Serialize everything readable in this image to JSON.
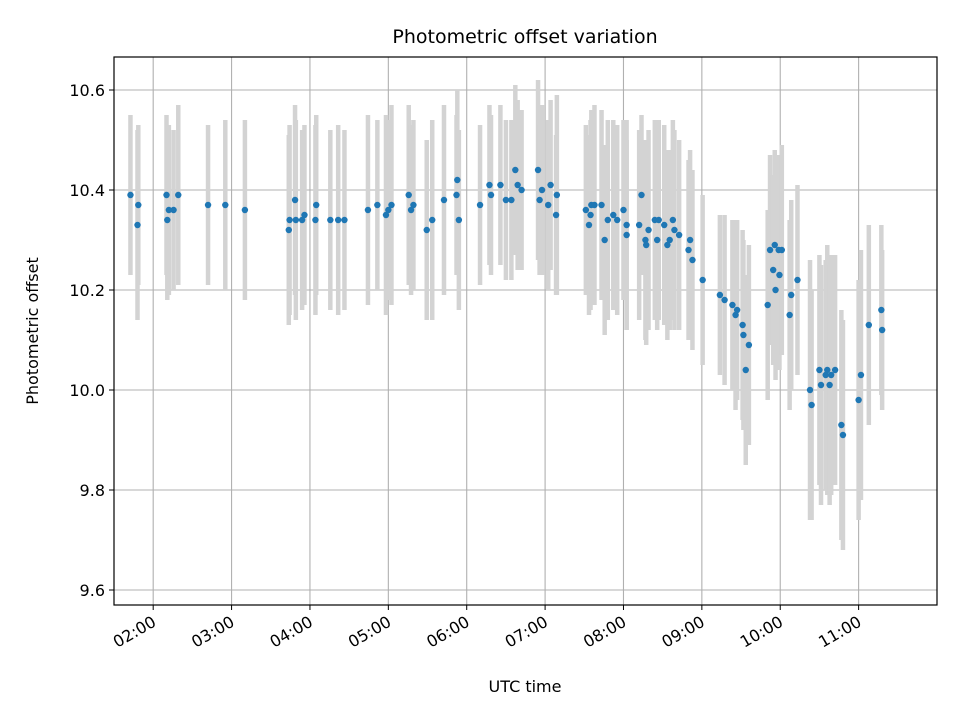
{
  "chart_data": {
    "type": "scatter",
    "title": "Photometric offset variation",
    "xlabel": "UTC time",
    "ylabel": "Photometric offset",
    "grid": true,
    "x_unit": "hours (UTC)",
    "xlim": [
      1.5,
      12.0
    ],
    "ylim": [
      9.57,
      10.666
    ],
    "xticks": [
      {
        "value": 2,
        "label": "02:00"
      },
      {
        "value": 3,
        "label": "03:00"
      },
      {
        "value": 4,
        "label": "04:00"
      },
      {
        "value": 5,
        "label": "05:00"
      },
      {
        "value": 6,
        "label": "06:00"
      },
      {
        "value": 7,
        "label": "07:00"
      },
      {
        "value": 8,
        "label": "08:00"
      },
      {
        "value": 9,
        "label": "09:00"
      },
      {
        "value": 10,
        "label": "10:00"
      },
      {
        "value": 11,
        "label": "11:00"
      }
    ],
    "yticks": [
      {
        "value": 9.6,
        "label": "9.6"
      },
      {
        "value": 9.8,
        "label": "9.8"
      },
      {
        "value": 10.0,
        "label": "10.0"
      },
      {
        "value": 10.2,
        "label": "10.2"
      },
      {
        "value": 10.4,
        "label": "10.4"
      },
      {
        "value": 10.6,
        "label": "10.6"
      }
    ],
    "colors": {
      "point": "#1f77b4",
      "errorbar": "#d3d3d3",
      "grid": "#b0b0b0"
    },
    "points": [
      {
        "x": 1.71,
        "y": 10.39,
        "err": 0.16
      },
      {
        "x": 1.8,
        "y": 10.33,
        "err": 0.19
      },
      {
        "x": 1.81,
        "y": 10.37,
        "err": 0.16
      },
      {
        "x": 2.17,
        "y": 10.39,
        "err": 0.16
      },
      {
        "x": 2.18,
        "y": 10.34,
        "err": 0.16
      },
      {
        "x": 2.2,
        "y": 10.36,
        "err": 0.17
      },
      {
        "x": 2.26,
        "y": 10.36,
        "err": 0.16
      },
      {
        "x": 2.32,
        "y": 10.39,
        "err": 0.18
      },
      {
        "x": 2.7,
        "y": 10.37,
        "err": 0.16
      },
      {
        "x": 2.92,
        "y": 10.37,
        "err": 0.17
      },
      {
        "x": 3.17,
        "y": 10.36,
        "err": 0.18
      },
      {
        "x": 3.73,
        "y": 10.32,
        "err": 0.19
      },
      {
        "x": 3.74,
        "y": 10.34,
        "err": 0.19
      },
      {
        "x": 3.81,
        "y": 10.38,
        "err": 0.19
      },
      {
        "x": 3.82,
        "y": 10.34,
        "err": 0.2
      },
      {
        "x": 3.9,
        "y": 10.34,
        "err": 0.18
      },
      {
        "x": 3.93,
        "y": 10.35,
        "err": 0.18
      },
      {
        "x": 4.08,
        "y": 10.37,
        "err": 0.18
      },
      {
        "x": 4.07,
        "y": 10.34,
        "err": 0.19
      },
      {
        "x": 4.26,
        "y": 10.34,
        "err": 0.18
      },
      {
        "x": 4.36,
        "y": 10.34,
        "err": 0.19
      },
      {
        "x": 4.44,
        "y": 10.34,
        "err": 0.18
      },
      {
        "x": 4.74,
        "y": 10.36,
        "err": 0.19
      },
      {
        "x": 4.86,
        "y": 10.37,
        "err": 0.17
      },
      {
        "x": 4.97,
        "y": 10.35,
        "err": 0.2
      },
      {
        "x": 5.0,
        "y": 10.36,
        "err": 0.18
      },
      {
        "x": 5.04,
        "y": 10.37,
        "err": 0.2
      },
      {
        "x": 5.26,
        "y": 10.39,
        "err": 0.18
      },
      {
        "x": 5.29,
        "y": 10.36,
        "err": 0.17
      },
      {
        "x": 5.32,
        "y": 10.37,
        "err": 0.17
      },
      {
        "x": 5.49,
        "y": 10.32,
        "err": 0.18
      },
      {
        "x": 5.56,
        "y": 10.34,
        "err": 0.2
      },
      {
        "x": 5.71,
        "y": 10.38,
        "err": 0.19
      },
      {
        "x": 5.87,
        "y": 10.39,
        "err": 0.16
      },
      {
        "x": 5.88,
        "y": 10.42,
        "err": 0.18
      },
      {
        "x": 5.9,
        "y": 10.34,
        "err": 0.18
      },
      {
        "x": 6.17,
        "y": 10.37,
        "err": 0.16
      },
      {
        "x": 6.29,
        "y": 10.41,
        "err": 0.16
      },
      {
        "x": 6.31,
        "y": 10.39,
        "err": 0.16
      },
      {
        "x": 6.43,
        "y": 10.41,
        "err": 0.16
      },
      {
        "x": 6.5,
        "y": 10.38,
        "err": 0.16
      },
      {
        "x": 6.57,
        "y": 10.38,
        "err": 0.16
      },
      {
        "x": 6.62,
        "y": 10.44,
        "err": 0.17
      },
      {
        "x": 6.65,
        "y": 10.41,
        "err": 0.17
      },
      {
        "x": 6.7,
        "y": 10.4,
        "err": 0.16
      },
      {
        "x": 6.91,
        "y": 10.44,
        "err": 0.18
      },
      {
        "x": 6.93,
        "y": 10.38,
        "err": 0.15
      },
      {
        "x": 6.96,
        "y": 10.4,
        "err": 0.17
      },
      {
        "x": 7.04,
        "y": 10.37,
        "err": 0.17
      },
      {
        "x": 7.07,
        "y": 10.41,
        "err": 0.17
      },
      {
        "x": 7.15,
        "y": 10.39,
        "err": 0.2
      },
      {
        "x": 7.14,
        "y": 10.35,
        "err": 0.16
      },
      {
        "x": 7.52,
        "y": 10.36,
        "err": 0.17
      },
      {
        "x": 7.56,
        "y": 10.33,
        "err": 0.18
      },
      {
        "x": 7.58,
        "y": 10.35,
        "err": 0.19
      },
      {
        "x": 7.59,
        "y": 10.37,
        "err": 0.19
      },
      {
        "x": 7.63,
        "y": 10.37,
        "err": 0.2
      },
      {
        "x": 7.72,
        "y": 10.37,
        "err": 0.19
      },
      {
        "x": 7.76,
        "y": 10.3,
        "err": 0.19
      },
      {
        "x": 7.8,
        "y": 10.34,
        "err": 0.2
      },
      {
        "x": 7.87,
        "y": 10.35,
        "err": 0.19
      },
      {
        "x": 7.92,
        "y": 10.34,
        "err": 0.19
      },
      {
        "x": 8.0,
        "y": 10.36,
        "err": 0.18
      },
      {
        "x": 8.04,
        "y": 10.31,
        "err": 0.19
      },
      {
        "x": 8.04,
        "y": 10.33,
        "err": 0.21
      },
      {
        "x": 8.2,
        "y": 10.33,
        "err": 0.19
      },
      {
        "x": 8.23,
        "y": 10.39,
        "err": 0.16
      },
      {
        "x": 8.28,
        "y": 10.3,
        "err": 0.2
      },
      {
        "x": 8.29,
        "y": 10.29,
        "err": 0.2
      },
      {
        "x": 8.32,
        "y": 10.32,
        "err": 0.2
      },
      {
        "x": 8.4,
        "y": 10.34,
        "err": 0.2
      },
      {
        "x": 8.45,
        "y": 10.34,
        "err": 0.2
      },
      {
        "x": 8.43,
        "y": 10.3,
        "err": 0.18
      },
      {
        "x": 8.52,
        "y": 10.33,
        "err": 0.2
      },
      {
        "x": 8.56,
        "y": 10.29,
        "err": 0.19
      },
      {
        "x": 8.59,
        "y": 10.3,
        "err": 0.18
      },
      {
        "x": 8.63,
        "y": 10.34,
        "err": 0.2
      },
      {
        "x": 8.65,
        "y": 10.32,
        "err": 0.2
      },
      {
        "x": 8.71,
        "y": 10.31,
        "err": 0.19
      },
      {
        "x": 8.85,
        "y": 10.3,
        "err": 0.18
      },
      {
        "x": 8.83,
        "y": 10.28,
        "err": 0.18
      },
      {
        "x": 8.88,
        "y": 10.26,
        "err": 0.18
      },
      {
        "x": 9.01,
        "y": 10.22,
        "err": 0.17
      },
      {
        "x": 9.23,
        "y": 10.19,
        "err": 0.16
      },
      {
        "x": 9.29,
        "y": 10.18,
        "err": 0.17
      },
      {
        "x": 9.39,
        "y": 10.17,
        "err": 0.17
      },
      {
        "x": 9.43,
        "y": 10.15,
        "err": 0.19
      },
      {
        "x": 9.45,
        "y": 10.16,
        "err": 0.18
      },
      {
        "x": 9.52,
        "y": 10.13,
        "err": 0.19
      },
      {
        "x": 9.53,
        "y": 10.11,
        "err": 0.19
      },
      {
        "x": 9.56,
        "y": 10.04,
        "err": 0.19
      },
      {
        "x": 9.6,
        "y": 10.09,
        "err": 0.2
      },
      {
        "x": 9.84,
        "y": 10.17,
        "err": 0.19
      },
      {
        "x": 9.87,
        "y": 10.28,
        "err": 0.19
      },
      {
        "x": 9.91,
        "y": 10.24,
        "err": 0.19
      },
      {
        "x": 9.93,
        "y": 10.29,
        "err": 0.19
      },
      {
        "x": 9.94,
        "y": 10.2,
        "err": 0.18
      },
      {
        "x": 9.98,
        "y": 10.28,
        "err": 0.19
      },
      {
        "x": 9.99,
        "y": 10.23,
        "err": 0.19
      },
      {
        "x": 10.02,
        "y": 10.28,
        "err": 0.21
      },
      {
        "x": 10.12,
        "y": 10.15,
        "err": 0.19
      },
      {
        "x": 10.14,
        "y": 10.19,
        "err": 0.19
      },
      {
        "x": 10.22,
        "y": 10.22,
        "err": 0.19
      },
      {
        "x": 10.38,
        "y": 10.0,
        "err": 0.26
      },
      {
        "x": 10.4,
        "y": 9.97,
        "err": 0.23
      },
      {
        "x": 10.5,
        "y": 10.04,
        "err": 0.23
      },
      {
        "x": 10.52,
        "y": 10.01,
        "err": 0.24
      },
      {
        "x": 10.58,
        "y": 10.03,
        "err": 0.23
      },
      {
        "x": 10.6,
        "y": 10.04,
        "err": 0.25
      },
      {
        "x": 10.63,
        "y": 10.01,
        "err": 0.24
      },
      {
        "x": 10.65,
        "y": 10.03,
        "err": 0.24
      },
      {
        "x": 10.7,
        "y": 10.04,
        "err": 0.23
      },
      {
        "x": 10.78,
        "y": 9.93,
        "err": 0.23
      },
      {
        "x": 10.8,
        "y": 9.91,
        "err": 0.23
      },
      {
        "x": 11.0,
        "y": 9.98,
        "err": 0.24
      },
      {
        "x": 11.03,
        "y": 10.03,
        "err": 0.25
      },
      {
        "x": 11.13,
        "y": 10.13,
        "err": 0.2
      },
      {
        "x": 11.29,
        "y": 10.16,
        "err": 0.17
      },
      {
        "x": 11.3,
        "y": 10.12,
        "err": 0.16
      }
    ]
  }
}
